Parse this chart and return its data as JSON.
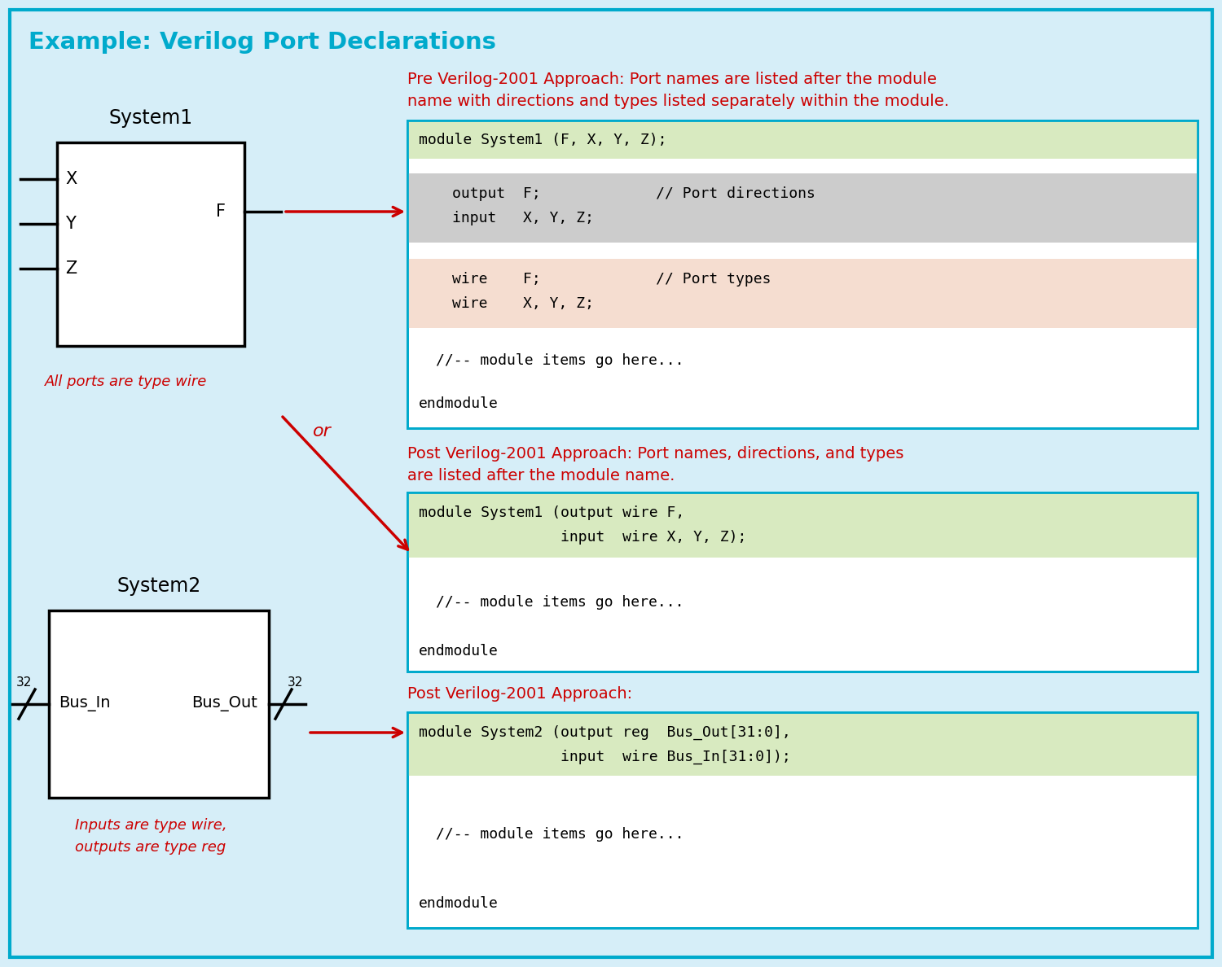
{
  "title": "Example: Verilog Port Declarations",
  "title_color": "#00AACC",
  "bg_color": "#D6EEF8",
  "border_color": "#00AACC",
  "red_color": "#CC0000",
  "black_color": "#000000",
  "gray_highlight": "#CCCCCC",
  "peach_highlight": "#F5DDD0",
  "green_highlight": "#D8EAC0",
  "pre2001_line1": "Pre Verilog-2001 Approach: Port names are listed after the module",
  "pre2001_line2": "name with directions and types listed separately within the module.",
  "post2001_line1": "Post Verilog-2001 Approach: Port names, directions, and types",
  "post2001_line2": "are listed after the module name.",
  "post2001_label2": "Post Verilog-2001 Approach:",
  "sys1_label": "System1",
  "sys2_label": "System2",
  "wire_label": "All ports are type wire",
  "bus_label_line1": "Inputs are type wire,",
  "bus_label_line2": "outputs are type reg",
  "or_label": "or"
}
